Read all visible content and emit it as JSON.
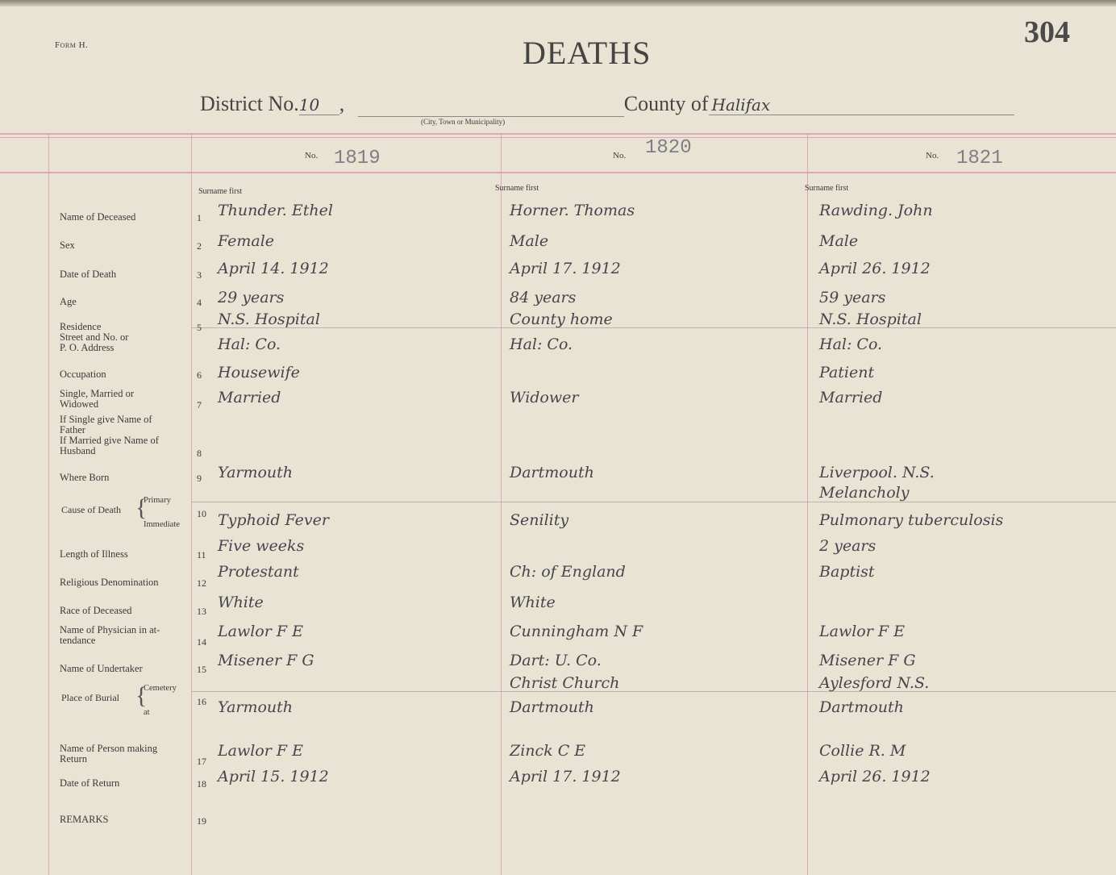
{
  "header": {
    "form": "Form H.",
    "title": "DEATHS",
    "page_number": "304",
    "district_label": "District No.",
    "district_value": "10",
    "municipality_caption": "(City, Town or Municipality)",
    "county_label": "County of",
    "county_value": "Halifax"
  },
  "number_label": "No.",
  "surname_hint": "Surname first",
  "fields": [
    {
      "num": "1",
      "label": "Name of Deceased"
    },
    {
      "num": "2",
      "label": "Sex"
    },
    {
      "num": "3",
      "label": "Date of Death"
    },
    {
      "num": "4",
      "label": "Age"
    },
    {
      "num": "5",
      "label": "Residence\nStreet and No. or\nP. O. Address"
    },
    {
      "num": "6",
      "label": "Occupation"
    },
    {
      "num": "7",
      "label": "Single, Married or\nWidowed"
    },
    {
      "num": "8",
      "label": "If Single give Name of\nFather\nIf Married give Name of\nHusband"
    },
    {
      "num": "9",
      "label": "Where Born"
    },
    {
      "num": "10",
      "label": "Cause of Death",
      "sub": [
        "Primary",
        "Immediate"
      ]
    },
    {
      "num": "11",
      "label": "Length of Illness"
    },
    {
      "num": "12",
      "label": "Religious Denomination"
    },
    {
      "num": "13",
      "label": "Race of Deceased"
    },
    {
      "num": "14",
      "label": "Name of Physician in at-\ntendance"
    },
    {
      "num": "15",
      "label": "Name of Undertaker"
    },
    {
      "num": "16",
      "label": "Place of Burial",
      "sub": [
        "Cemetery",
        "at"
      ]
    },
    {
      "num": "17",
      "label": "Name of Person making\nReturn"
    },
    {
      "num": "18",
      "label": "Date of Return"
    },
    {
      "num": "19",
      "label": "REMARKS"
    }
  ],
  "records": [
    {
      "number": "1819",
      "name": "Thunder. Ethel",
      "sex": "Female",
      "date_of_death": "April 14. 1912",
      "age": "29 years",
      "residence": "N.S. Hospital",
      "address": "Hal: Co.",
      "occupation": "Housewife",
      "marital": "Married",
      "parent_spouse": "",
      "where_born": "Yarmouth",
      "cause_primary": "",
      "cause_immediate": "Typhoid Fever",
      "length_illness": "Five weeks",
      "religion": "Protestant",
      "race": "White",
      "physician": "Lawlor F E",
      "undertaker": "Misener F G",
      "cemetery": "",
      "burial_at": "Yarmouth",
      "return_by": "Lawlor F E",
      "date_return": "April 15. 1912",
      "remarks": ""
    },
    {
      "number": "1820",
      "name": "Horner. Thomas",
      "sex": "Male",
      "date_of_death": "April 17. 1912",
      "age": "84 years",
      "residence": "County home",
      "address": "Hal: Co.",
      "occupation": "",
      "marital": "Widower",
      "parent_spouse": "",
      "where_born": "Dartmouth",
      "cause_primary": "",
      "cause_immediate": "Senility",
      "length_illness": "",
      "religion": "Ch: of England",
      "race": "White",
      "physician": "Cunningham N F",
      "undertaker": "Dart: U. Co.",
      "cemetery": "Christ Church",
      "burial_at": "Dartmouth",
      "return_by": "Zinck C E",
      "date_return": "April 17. 1912",
      "remarks": ""
    },
    {
      "number": "1821",
      "name": "Rawding. John",
      "sex": "Male",
      "date_of_death": "April 26. 1912",
      "age": "59 years",
      "residence": "N.S. Hospital",
      "address": "Hal: Co.",
      "occupation": "Patient",
      "marital": "Married",
      "parent_spouse": "",
      "where_born": "Liverpool. N.S.",
      "cause_primary": "Melancholy",
      "cause_immediate": "Pulmonary tuberculosis",
      "length_illness": "2 years",
      "religion": "Baptist",
      "race": "",
      "physician": "Lawlor F E",
      "undertaker": "Misener F G",
      "cemetery": "Aylesford N.S.",
      "burial_at": "Dartmouth",
      "return_by": "Collie R. M",
      "date_return": "April 26. 1912",
      "remarks": ""
    }
  ]
}
